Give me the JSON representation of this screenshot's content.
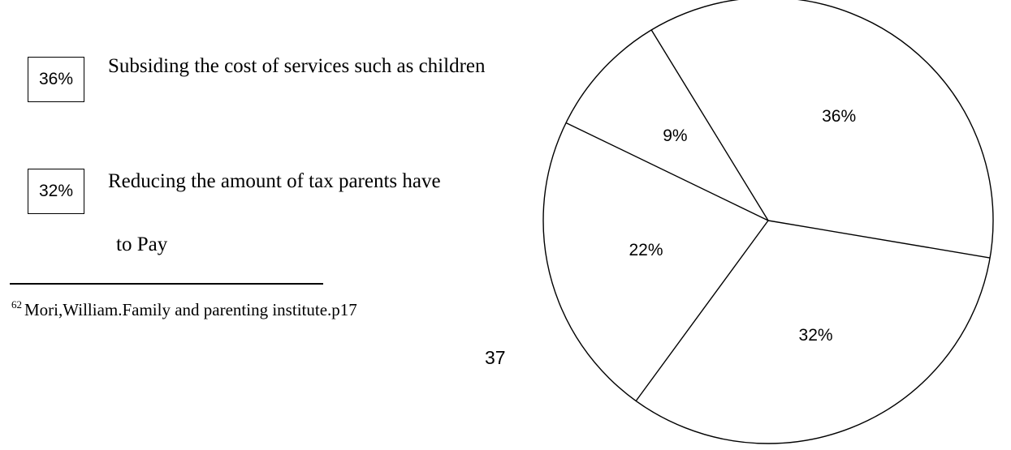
{
  "legend": [
    {
      "percent": "36%",
      "text": "Subsiding the cost of services such as children"
    },
    {
      "percent": "32%",
      "text": "Reducing the amount of tax parents have",
      "continuation": "to Pay"
    }
  ],
  "footnote": {
    "number": "62",
    "text": "Mori,William.Family and parenting institute.p17"
  },
  "page_number": "37",
  "chart_data": {
    "type": "pie",
    "categories": [
      "9%",
      "36%",
      "32%",
      "22%"
    ],
    "values": [
      9,
      36,
      32,
      22
    ],
    "labels": [
      "9%",
      "36%",
      "32%",
      "22%"
    ],
    "title": "",
    "legend": "none"
  }
}
